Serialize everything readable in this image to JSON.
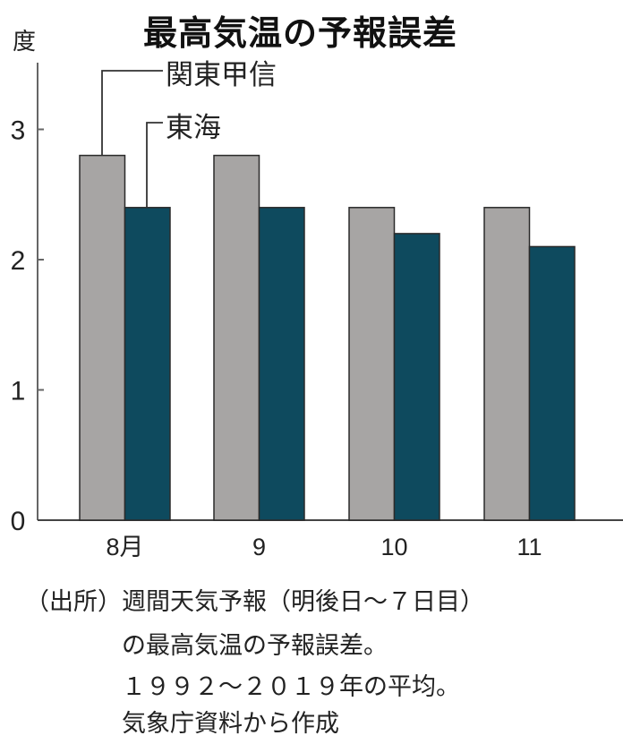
{
  "title": "最高気温の予報誤差",
  "unit_label": "度",
  "colors": {
    "series_kanto": "#a7a5a4",
    "series_tokai": "#0e4a5e",
    "bar_outline": "#2a2a2a",
    "axis": "#666666"
  },
  "chart_data": {
    "type": "bar",
    "title": "最高気温の予報誤差",
    "xlabel": "",
    "ylabel": "度",
    "categories": [
      "8月",
      "9",
      "10",
      "11"
    ],
    "series": [
      {
        "name": "関東甲信",
        "values": [
          2.8,
          2.8,
          2.4,
          2.4
        ]
      },
      {
        "name": "東海",
        "values": [
          2.4,
          2.4,
          2.2,
          2.1
        ]
      }
    ],
    "ylim": [
      0,
      3.5
    ],
    "yticks": [
      0,
      1,
      2,
      3
    ],
    "grid": false,
    "legend": "leader-line labels above first group"
  },
  "legend": [
    {
      "label": "関東甲信"
    },
    {
      "label": "東海"
    }
  ],
  "notes": [
    "（出所）週間天気予報（明後日～７日目）",
    "の最高気温の予報誤差。",
    "１９９２～２０１９年の平均。",
    "気象庁資料から作成"
  ]
}
